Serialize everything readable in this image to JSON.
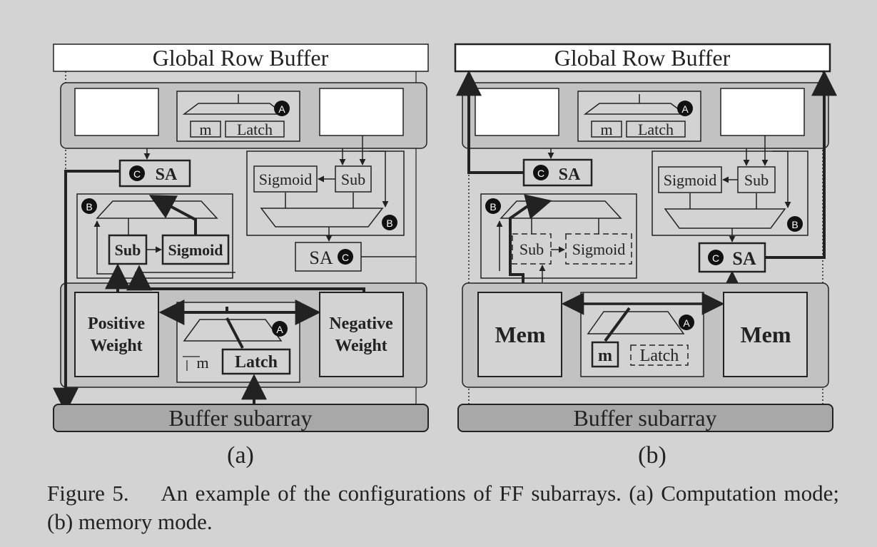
{
  "panel_a": {
    "global_row_buffer": "Global Row Buffer",
    "buffer_subarray": "Buffer subarray",
    "m": "m",
    "latch": "Latch",
    "sa": "SA",
    "sigmoid": "Sigmoid",
    "sub": "Sub",
    "positive_weight": [
      "Positive",
      "Weight"
    ],
    "negative_weight": [
      "Negative",
      "Weight"
    ],
    "badges": {
      "a": "A",
      "b": "B",
      "c": "C"
    },
    "label": "(a)"
  },
  "panel_b": {
    "global_row_buffer": "Global Row Buffer",
    "buffer_subarray": "Buffer subarray",
    "m": "m",
    "latch": "Latch",
    "sa": "SA",
    "sigmoid": "Sigmoid",
    "sub": "Sub",
    "mem": "Mem",
    "badges": {
      "a": "A",
      "b": "B",
      "c": "C"
    },
    "label": "(b)"
  },
  "caption": {
    "number": "Figure 5.",
    "text": "An example of the configurations of FF subarrays. (a) Computation mode; (b) memory mode."
  },
  "colors": {
    "background": "#d3d3d3",
    "stroke": "#222222",
    "buffer_fill": "#a8a8a8"
  }
}
